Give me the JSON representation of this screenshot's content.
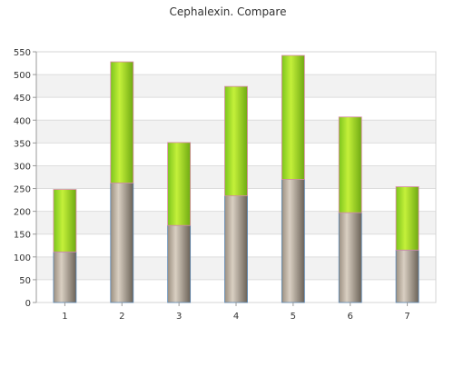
{
  "chart_data": {
    "type": "bar",
    "stacked": true,
    "title": "Cephalexin. Compare",
    "xlabel": "",
    "ylabel": "",
    "categories": [
      "1",
      "2",
      "3",
      "4",
      "5",
      "6",
      "7"
    ],
    "series": [
      {
        "values": [
          111,
          262,
          169,
          234,
          270,
          197,
          115
        ],
        "color": "#8a7f72"
      },
      {
        "values": [
          137,
          266,
          182,
          240,
          272,
          210,
          139
        ],
        "color": "#8fd11e"
      }
    ],
    "ylim": [
      0,
      550
    ],
    "yticks": [
      0,
      50,
      100,
      150,
      200,
      250,
      300,
      350,
      400,
      450,
      500,
      550
    ],
    "grid": true,
    "legend": "none"
  }
}
